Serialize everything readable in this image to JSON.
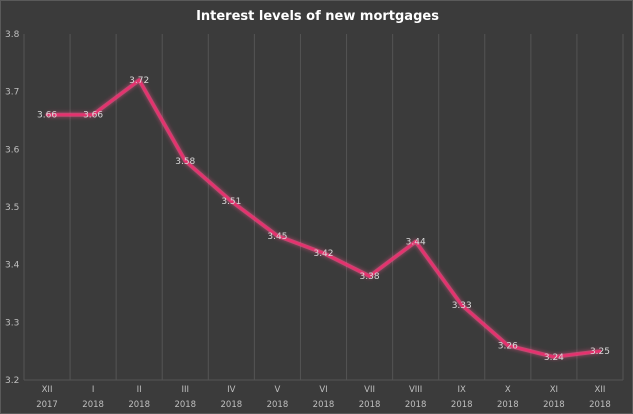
{
  "chart_data": {
    "type": "line",
    "title": "Interest levels of new mortgages",
    "categories": [
      {
        "month": "XII",
        "year": "2017"
      },
      {
        "month": "I",
        "year": "2018"
      },
      {
        "month": "II",
        "year": "2018"
      },
      {
        "month": "III",
        "year": "2018"
      },
      {
        "month": "IV",
        "year": "2018"
      },
      {
        "month": "V",
        "year": "2018"
      },
      {
        "month": "VI",
        "year": "2018"
      },
      {
        "month": "VII",
        "year": "2018"
      },
      {
        "month": "VIII",
        "year": "2018"
      },
      {
        "month": "IX",
        "year": "2018"
      },
      {
        "month": "X",
        "year": "2018"
      },
      {
        "month": "XI",
        "year": "2018"
      },
      {
        "month": "XII",
        "year": "2018"
      }
    ],
    "series": [
      {
        "values": [
          3.66,
          3.66,
          3.72,
          3.58,
          3.51,
          3.45,
          3.42,
          3.38,
          3.44,
          3.33,
          3.26,
          3.24,
          3.25
        ],
        "labels": [
          "3.66",
          "3.66",
          "3.72",
          "3.58",
          "3.51",
          "3.45",
          "3.42",
          "3.38",
          "3.44",
          "3.33",
          "3.26",
          "3.24",
          "3.25"
        ]
      }
    ],
    "yticks": [
      "3.2",
      "3.3",
      "3.4",
      "3.5",
      "3.6",
      "3.7",
      "3.8"
    ],
    "ylim": [
      3.2,
      3.8
    ],
    "grid": "vertical",
    "legend": "none",
    "colors": {
      "background": "#3b3b3b",
      "grid": "#545454",
      "line": "#e8306e",
      "glow": "#ff4f88",
      "text": "#bfbfbf",
      "title": "#ffffff"
    }
  }
}
